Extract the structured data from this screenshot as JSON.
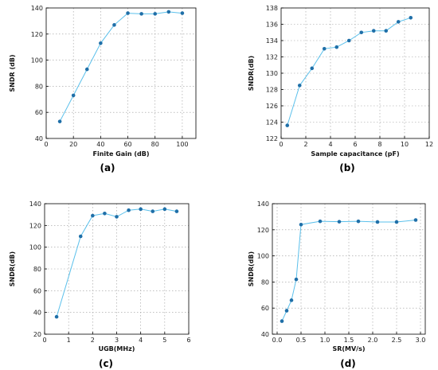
{
  "chart_data": [
    {
      "type": "line",
      "panel_label": "(a)",
      "xlabel": "Finite Gain (dB)",
      "ylabel": "SNDR (dB)",
      "xlim": [
        0,
        110
      ],
      "ylim": [
        40,
        140
      ],
      "xticks": [
        0,
        20,
        40,
        60,
        80,
        100
      ],
      "yticks": [
        40,
        60,
        80,
        100,
        120,
        140
      ],
      "grid": true,
      "series": [
        {
          "x": [
            10,
            20,
            30,
            40,
            50,
            60,
            70,
            80,
            90,
            100
          ],
          "y": [
            53,
            73,
            93,
            113,
            127,
            136,
            135.5,
            135.5,
            137,
            136
          ],
          "color": "#5bc0eb",
          "marker_color": "#1f6fa8"
        }
      ]
    },
    {
      "type": "line",
      "panel_label": "(b)",
      "xlabel": "Sample capacitance  (pF)",
      "ylabel": "SNDR(dB)",
      "xlim": [
        0,
        12
      ],
      "ylim": [
        122,
        138
      ],
      "xticks": [
        0,
        2,
        4,
        6,
        8,
        10,
        12
      ],
      "yticks": [
        122,
        124,
        126,
        128,
        130,
        132,
        134,
        136,
        138
      ],
      "grid": true,
      "series": [
        {
          "x": [
            0.5,
            1.5,
            2.5,
            3.5,
            4.5,
            5.5,
            6.5,
            7.5,
            8.5,
            9.5,
            10.5
          ],
          "y": [
            123.6,
            128.5,
            130.6,
            133,
            133.2,
            134,
            135,
            135.2,
            135.2,
            136.3,
            136.8
          ],
          "color": "#5bc0eb",
          "marker_color": "#1f6fa8"
        }
      ]
    },
    {
      "type": "line",
      "panel_label": "(c)",
      "xlabel": "UGB(MHz)",
      "ylabel": "SNDR(dB)",
      "xlim": [
        0,
        6
      ],
      "ylim": [
        20,
        140
      ],
      "xticks": [
        0,
        1,
        2,
        3,
        4,
        5,
        6
      ],
      "yticks": [
        20,
        40,
        60,
        80,
        100,
        120,
        140
      ],
      "grid": true,
      "series": [
        {
          "x": [
            0.5,
            1.5,
            2.0,
            2.5,
            3.0,
            3.5,
            4.0,
            4.5,
            5.0,
            5.5
          ],
          "y": [
            36,
            110,
            129,
            131,
            128,
            134,
            135,
            133,
            135,
            133
          ],
          "color": "#5bc0eb",
          "marker_color": "#1f6fa8"
        }
      ]
    },
    {
      "type": "line",
      "panel_label": "(d)",
      "xlabel": "SR(MV/s)",
      "ylabel": "SNDR(dB)",
      "xlim": [
        -0.1,
        3.1
      ],
      "ylim": [
        40,
        140
      ],
      "xticks": [
        0.0,
        0.5,
        1.0,
        1.5,
        2.0,
        2.5,
        3.0
      ],
      "yticks": [
        40,
        60,
        80,
        100,
        120,
        140
      ],
      "grid": true,
      "series": [
        {
          "x": [
            0.1,
            0.2,
            0.3,
            0.4,
            0.5,
            0.9,
            1.3,
            1.7,
            2.1,
            2.5,
            2.9
          ],
          "y": [
            50,
            58,
            66,
            82,
            124,
            126.5,
            126.2,
            126.5,
            126,
            126,
            127.5
          ],
          "color": "#5bc0eb",
          "marker_color": "#1f6fa8"
        }
      ]
    }
  ]
}
